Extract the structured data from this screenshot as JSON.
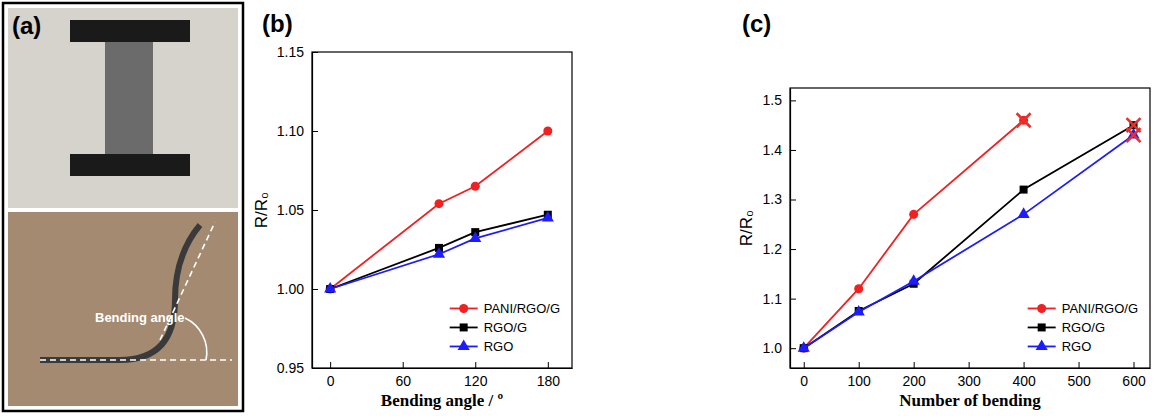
{
  "photo_panel": {
    "panel_label": "(a)",
    "annotation": "Bending angle"
  },
  "chart_data": [
    {
      "type": "line",
      "panel_label": "(b)",
      "x_label": "Bending angle / º",
      "y_label": "R/R₀",
      "x": [
        0,
        90,
        120,
        180
      ],
      "xlim": [
        -15,
        200
      ],
      "xticks": [
        0,
        60,
        120,
        180
      ],
      "ylim": [
        0.95,
        1.15
      ],
      "yticks": [
        {
          "value": 0.95,
          "label": "0.95"
        },
        {
          "value": 1.0,
          "label": "1.00"
        },
        {
          "value": 1.05,
          "label": "1.05"
        },
        {
          "value": 1.1,
          "label": "1.10"
        },
        {
          "value": 1.15,
          "label": "1.15"
        }
      ],
      "legend": "lower right",
      "series": [
        {
          "name": "PANI/RGO/G",
          "color": "#f22020",
          "marker": "circle",
          "values": [
            1.0,
            1.054,
            1.065,
            1.1
          ]
        },
        {
          "name": "RGO/G",
          "color": "#000000",
          "marker": "square",
          "values": [
            1.0,
            1.026,
            1.036,
            1.047
          ]
        },
        {
          "name": "RGO",
          "color": "#1c1cff",
          "marker": "triangle",
          "values": [
            1.0,
            1.022,
            1.032,
            1.045
          ]
        }
      ]
    },
    {
      "type": "line",
      "panel_label": "(c)",
      "x_label": "Number of bending",
      "y_label": "R/R₀",
      "x": [
        0,
        100,
        200,
        400,
        600
      ],
      "xlim": [
        -25,
        630
      ],
      "xticks": [
        0,
        100,
        200,
        300,
        400,
        500,
        600
      ],
      "ylim": [
        0.96,
        1.525
      ],
      "yticks": [
        {
          "value": 1.0,
          "label": "1.0"
        },
        {
          "value": 1.1,
          "label": "1.1"
        },
        {
          "value": 1.2,
          "label": "1.2"
        },
        {
          "value": 1.3,
          "label": "1.3"
        },
        {
          "value": 1.4,
          "label": "1.4"
        },
        {
          "value": 1.5,
          "label": "1.5"
        }
      ],
      "legend": "lower right",
      "series": [
        {
          "name": "PANI/RGO/G",
          "color": "#f22020",
          "marker": "circle",
          "values": [
            1.0,
            1.12,
            1.27,
            1.46,
            null
          ]
        },
        {
          "name": "RGO/G",
          "color": "#000000",
          "marker": "square",
          "values": [
            1.0,
            1.075,
            1.13,
            1.32,
            1.45
          ]
        },
        {
          "name": "RGO",
          "color": "#1c1cff",
          "marker": "triangle",
          "values": [
            1.0,
            1.073,
            1.135,
            1.27,
            1.43
          ]
        }
      ],
      "failure_points": {
        "x": [
          400,
          600,
          600
        ],
        "y": [
          1.46,
          1.45,
          1.43
        ],
        "color": "#e8312a",
        "marker": "x"
      }
    }
  ]
}
